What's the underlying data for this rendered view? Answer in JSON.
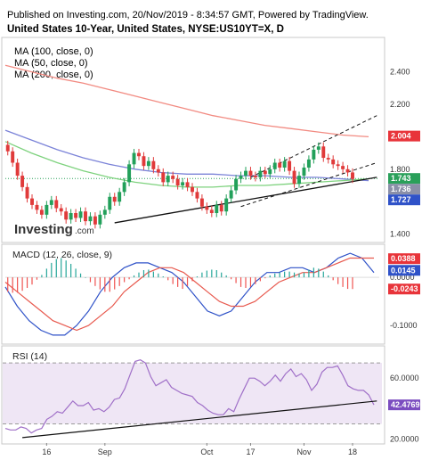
{
  "header": {
    "published": "Published on Investing.com, 20/Nov/2019 - 8:34:57 GMT, Powered by TradingView.",
    "title": "United States 10-Year, United States, NYSE:US10YT=X, D"
  },
  "logo": {
    "main": "Investing",
    "suffix": ".com"
  },
  "chart_data": [
    {
      "type": "candlestick",
      "panel": "price",
      "legend": [
        "MA (100, close, 0)",
        "MA (50, close, 0)",
        "MA (200, close, 0)"
      ],
      "ylim": [
        1.36,
        2.6
      ],
      "yticks": [
        {
          "value": 2.4,
          "label": "2.400"
        },
        {
          "value": 2.2,
          "label": "2.200"
        },
        {
          "value": 1.8,
          "label": "1.800"
        },
        {
          "value": 1.4,
          "label": "1.400"
        }
      ],
      "xticks": [
        {
          "bar": 8,
          "label": "16"
        },
        {
          "bar": 20,
          "label": "Sep"
        },
        {
          "bar": 41,
          "label": "Oct"
        },
        {
          "bar": 50,
          "label": "17"
        },
        {
          "bar": 61,
          "label": "Nov"
        },
        {
          "bar": 71,
          "label": "18"
        }
      ],
      "price_tags": [
        {
          "value": 2.004,
          "label": "2.004",
          "color": "#e8343a"
        },
        {
          "value": 1.743,
          "label": "1.743",
          "color": "#2aa05a"
        },
        {
          "value": 1.736,
          "label": "1.736",
          "color": "#8a8fa8"
        },
        {
          "value": 1.727,
          "label": "1.727",
          "color": "#2f52c8"
        }
      ],
      "closes": [
        1.91,
        1.84,
        1.76,
        1.69,
        1.62,
        1.58,
        1.55,
        1.52,
        1.58,
        1.61,
        1.56,
        1.54,
        1.49,
        1.53,
        1.5,
        1.54,
        1.48,
        1.51,
        1.46,
        1.52,
        1.55,
        1.63,
        1.6,
        1.66,
        1.72,
        1.83,
        1.9,
        1.88,
        1.82,
        1.85,
        1.8,
        1.78,
        1.72,
        1.76,
        1.74,
        1.7,
        1.72,
        1.69,
        1.66,
        1.62,
        1.57,
        1.55,
        1.53,
        1.58,
        1.54,
        1.62,
        1.67,
        1.74,
        1.76,
        1.79,
        1.76,
        1.75,
        1.79,
        1.77,
        1.8,
        1.84,
        1.81,
        1.85,
        1.79,
        1.71,
        1.76,
        1.81,
        1.86,
        1.92,
        1.94,
        1.87,
        1.86,
        1.83,
        1.82,
        1.8,
        1.78,
        1.74
      ],
      "series": [
        {
          "name": "MA (200, close, 0)",
          "color": "#f28b82",
          "values": [
            2.44,
            2.4,
            2.36,
            2.33,
            2.29,
            2.25,
            2.21,
            2.17,
            2.13,
            2.1,
            2.07,
            2.05,
            2.03,
            2.01,
            2.0
          ]
        },
        {
          "name": "MA (100, close, 0)",
          "color": "#7b83d8",
          "values": [
            2.04,
            1.98,
            1.92,
            1.87,
            1.83,
            1.8,
            1.78,
            1.77,
            1.77,
            1.76,
            1.76,
            1.75,
            1.75,
            1.74,
            1.73
          ]
        },
        {
          "name": "MA (50, close, 0)",
          "color": "#7ed27e",
          "values": [
            1.97,
            1.9,
            1.84,
            1.79,
            1.75,
            1.72,
            1.7,
            1.69,
            1.69,
            1.7,
            1.7,
            1.71,
            1.72,
            1.73,
            1.74
          ]
        }
      ],
      "trendlines": [
        {
          "style": "solid",
          "from": {
            "bar": 22,
            "value": 1.47
          },
          "to": {
            "bar": 76,
            "value": 1.75
          }
        },
        {
          "style": "dashed",
          "from": {
            "bar": 50,
            "value": 1.75
          },
          "to": {
            "bar": 76,
            "value": 2.13
          }
        },
        {
          "style": "dashed",
          "from": {
            "bar": 48,
            "value": 1.57
          },
          "to": {
            "bar": 76,
            "value": 1.84
          }
        }
      ]
    },
    {
      "type": "bar+line",
      "panel": "macd",
      "legend": "MACD (12, 26, close, 9)",
      "ylim": [
        -0.135,
        0.065
      ],
      "yticks": [
        {
          "value": 0.0,
          "label": "0.0000"
        },
        {
          "value": -0.1,
          "label": "-0.1000"
        }
      ],
      "tags": [
        {
          "value": 0.0388,
          "label": "0.0388",
          "color": "#e8343a"
        },
        {
          "value": 0.0145,
          "label": "0.0145",
          "color": "#2f52c8"
        },
        {
          "value": -0.0243,
          "label": "-0.0243",
          "color": "#e8343a"
        }
      ],
      "macd": [
        -0.02,
        -0.06,
        -0.09,
        -0.11,
        -0.12,
        -0.12,
        -0.1,
        -0.07,
        -0.03,
        0.0,
        0.02,
        0.03,
        0.03,
        0.02,
        0.01,
        -0.01,
        -0.04,
        -0.07,
        -0.08,
        -0.07,
        -0.04,
        -0.01,
        0.01,
        0.01,
        0.02,
        0.02,
        0.01,
        0.02,
        0.04,
        0.05,
        0.04,
        0.01
      ],
      "signal": [
        -0.01,
        -0.03,
        -0.05,
        -0.07,
        -0.09,
        -0.1,
        -0.11,
        -0.1,
        -0.08,
        -0.06,
        -0.03,
        -0.01,
        0.01,
        0.02,
        0.02,
        0.01,
        -0.01,
        -0.03,
        -0.05,
        -0.06,
        -0.06,
        -0.05,
        -0.03,
        -0.01,
        0.0,
        0.01,
        0.01,
        0.02,
        0.03,
        0.04,
        0.04,
        0.04
      ],
      "histogram": [
        -0.03,
        -0.032,
        -0.032,
        -0.028,
        -0.022,
        -0.015,
        -0.005,
        0.005,
        0.018,
        0.03,
        0.038,
        0.04,
        0.035,
        0.028,
        0.018,
        0.008,
        0.0,
        -0.01,
        -0.018,
        -0.025,
        -0.03,
        -0.03,
        -0.025,
        -0.018,
        -0.01,
        -0.004,
        0.004,
        0.01,
        0.015,
        0.016,
        0.012,
        0.008,
        0.002,
        -0.006,
        -0.014,
        -0.02,
        -0.024,
        -0.018,
        -0.008,
        0.002,
        0.01,
        0.014,
        0.016,
        0.015,
        0.01,
        0.004,
        -0.004,
        -0.012,
        -0.02,
        -0.022,
        -0.02,
        -0.014,
        -0.008,
        -0.002,
        0.004,
        0.008,
        0.01,
        0.012,
        0.012,
        0.01,
        0.008,
        0.01,
        0.016,
        0.02,
        0.018,
        0.012,
        0.004,
        -0.006,
        -0.014,
        -0.02,
        -0.024,
        -0.0243
      ]
    },
    {
      "type": "line",
      "panel": "rsi",
      "legend": "RSI (14)",
      "ylim": [
        18,
        80
      ],
      "yticks": [
        {
          "value": 60,
          "label": "60.0000"
        },
        {
          "value": 20,
          "label": "20.0000"
        }
      ],
      "band": [
        30,
        70
      ],
      "tag": {
        "value": 42.4769,
        "label": "42.4769",
        "color": "#7b4cc0"
      },
      "values": [
        27,
        26,
        26,
        28,
        27,
        24,
        26,
        27,
        33,
        35,
        38,
        37,
        41,
        45,
        42,
        42,
        44,
        39,
        40,
        38,
        41,
        46,
        47,
        53,
        62,
        71,
        72,
        70,
        61,
        55,
        57,
        59,
        54,
        52,
        50,
        49,
        48,
        44,
        42,
        39,
        37,
        36,
        36,
        40,
        38,
        46,
        53,
        60,
        60,
        58,
        55,
        58,
        62,
        58,
        63,
        66,
        61,
        63,
        59,
        52,
        56,
        64,
        67,
        67,
        68,
        62,
        55,
        53,
        52,
        52,
        49,
        42.48
      ],
      "trendline": {
        "from": {
          "bar": 3,
          "value": 21
        },
        "to": {
          "bar": 76,
          "value": 45
        }
      }
    }
  ],
  "colors": {
    "bull": "#26a69a",
    "bear": "#ef5350",
    "candle_up": "#22a05a",
    "candle_down": "#e03a3a",
    "macd_line": "#2f52c8",
    "signal_line": "#e85a4f",
    "rsi_line": "#a070c8",
    "rsi_band": "#efe6f5"
  }
}
